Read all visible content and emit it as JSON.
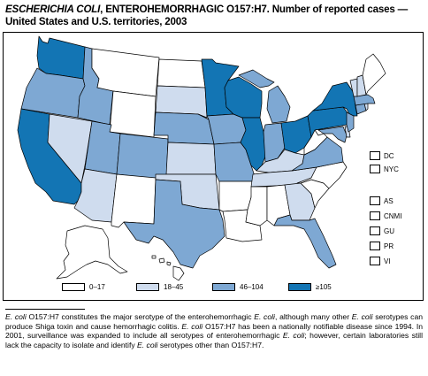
{
  "figure": {
    "title_italic": "ESCHERICHIA COLI",
    "title_rest": ", ENTEROHEMORRHAGIC O157:H7. Number of reported cases — United States and U.S. territories, 2003"
  },
  "colors": {
    "0-17": "#ffffff",
    "18-45": "#cfdcee",
    "46-104": "#7ea8d3",
    "105+": "#1375b4"
  },
  "legend": [
    {
      "label": "0–17",
      "color": "#ffffff"
    },
    {
      "label": "18–45",
      "color": "#cfdcee"
    },
    {
      "label": "46–104",
      "color": "#7ea8d3"
    },
    {
      "label": "≥105",
      "color": "#1375b4"
    }
  ],
  "territories": [
    {
      "label": "DC"
    },
    {
      "label": "NYC"
    },
    {
      "label": "AS"
    },
    {
      "label": "CNMI"
    },
    {
      "label": "GU"
    },
    {
      "label": "PR"
    },
    {
      "label": "VI"
    }
  ],
  "caption": {
    "p1": "E. coli",
    "p2": " O157:H7 constitutes the major serotype of the enterohemorrhagic ",
    "p3": "E. coli",
    "p4": ", although many other ",
    "p5": "E. coli",
    "p6": " serotypes can produce Shiga toxin and cause hemorrhagic colitis. ",
    "p7": "E. coli",
    "p8": " O157:H7 has been a nationally notifiable disease since 1994. In 2001, surveillance was expanded to include all serotypes of enterohemorrhagic ",
    "p9": "E. coli",
    "p10": "; however, certain laboratories still lack the capacity to isolate and identify ",
    "p11": "E. coli",
    "p12": " serotypes other than O157:H7."
  }
}
